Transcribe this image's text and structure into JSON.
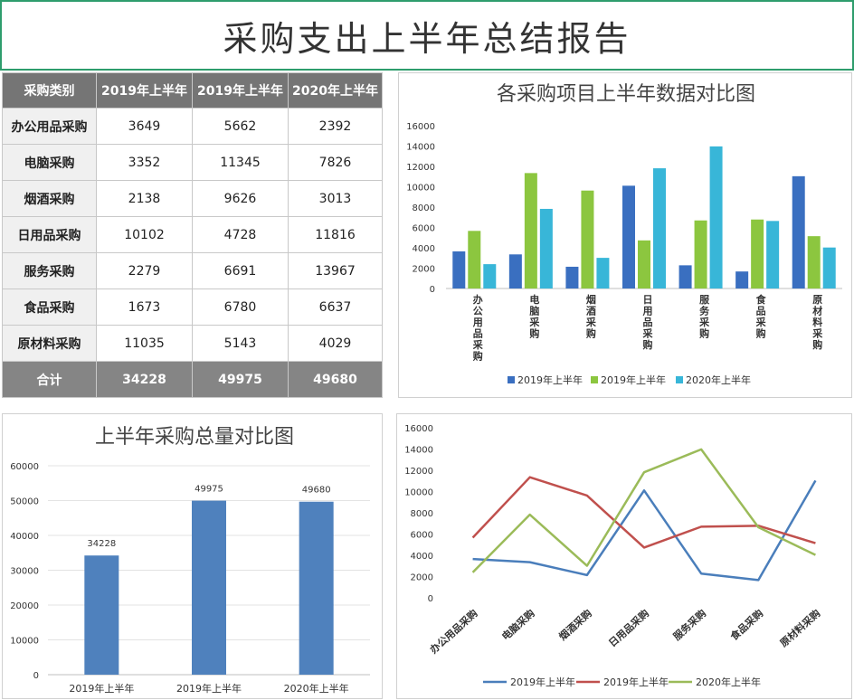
{
  "header": {
    "title": "采购支出上半年总结报告"
  },
  "table": {
    "columns": [
      "采购类别",
      "2019年上半年",
      "2019年上半年",
      "2020年上半年"
    ],
    "rows": [
      [
        "办公用品采购",
        "3649",
        "5662",
        "2392"
      ],
      [
        "电脑采购",
        "3352",
        "11345",
        "7826"
      ],
      [
        "烟酒采购",
        "2138",
        "9626",
        "3013"
      ],
      [
        "日用品采购",
        "10102",
        "4728",
        "11816"
      ],
      [
        "服务采购",
        "2279",
        "6691",
        "13967"
      ],
      [
        "食品采购",
        "1673",
        "6780",
        "6637"
      ],
      [
        "原材料采购",
        "11035",
        "5143",
        "4029"
      ]
    ],
    "total": [
      "合计",
      "34228",
      "49975",
      "49680"
    ]
  },
  "colors": {
    "bar_series": [
      "#3a6fc0",
      "#8cc63f",
      "#38b6d8"
    ],
    "line_series": [
      "#4a7ebb",
      "#c0504d",
      "#9bbb59"
    ],
    "totals_bar": "#4f81bd",
    "title_border": "#2e9d6d"
  },
  "chart_data": [
    {
      "type": "bar",
      "title": "各采购项目上半年数据对比图",
      "categories": [
        "办公用品采购",
        "电脑采购",
        "烟酒采购",
        "日用品采购",
        "服务采购",
        "食品采购",
        "原材料采购"
      ],
      "series": [
        {
          "name": "2019年上半年",
          "values": [
            3649,
            3352,
            2138,
            10102,
            2279,
            1673,
            11035
          ]
        },
        {
          "name": "2019年上半年",
          "values": [
            5662,
            11345,
            9626,
            4728,
            6691,
            6780,
            5143
          ]
        },
        {
          "name": "2020年上半年",
          "values": [
            2392,
            7826,
            3013,
            11816,
            13967,
            6637,
            4029
          ]
        }
      ],
      "ylim": [
        0,
        16000
      ],
      "yticks": [
        0,
        2000,
        4000,
        6000,
        8000,
        10000,
        12000,
        14000,
        16000
      ],
      "legend": "bottom",
      "grid": false
    },
    {
      "type": "bar",
      "title": "上半年采购总量对比图",
      "categories": [
        "2019年上半年",
        "2019年上半年",
        "2020年上半年"
      ],
      "values": [
        34228,
        49975,
        49680
      ],
      "data_labels": [
        "34228",
        "49975",
        "49680"
      ],
      "ylim": [
        0,
        60000
      ],
      "yticks": [
        0,
        10000,
        20000,
        30000,
        40000,
        50000,
        60000
      ],
      "grid": true
    },
    {
      "type": "line",
      "categories": [
        "办公用品采购",
        "电脑采购",
        "烟酒采购",
        "日用品采购",
        "服务采购",
        "食品采购",
        "原材料采购"
      ],
      "series": [
        {
          "name": "2019年上半年",
          "values": [
            3649,
            3352,
            2138,
            10102,
            2279,
            1673,
            11035
          ]
        },
        {
          "name": "2019年上半年",
          "values": [
            5662,
            11345,
            9626,
            4728,
            6691,
            6780,
            5143
          ]
        },
        {
          "name": "2020年上半年",
          "values": [
            2392,
            7826,
            3013,
            11816,
            13967,
            6637,
            4029
          ]
        }
      ],
      "ylim": [
        0,
        16000
      ],
      "yticks": [
        0,
        2000,
        4000,
        6000,
        8000,
        10000,
        12000,
        14000,
        16000
      ],
      "legend": "bottom",
      "grid": false
    }
  ]
}
